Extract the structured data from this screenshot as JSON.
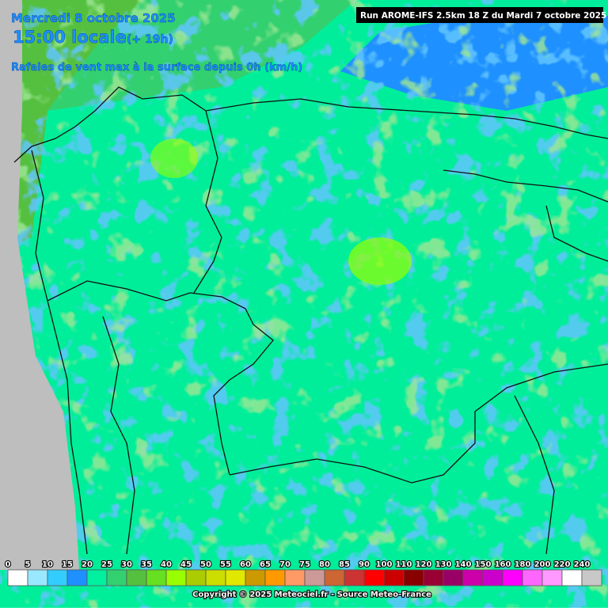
{
  "header": {
    "date": "Mercredi 8 octobre 2025",
    "time": "15:00 locale",
    "offset": "(+ 19h)",
    "parameter": "Rafales de vent max à la surface depuis 0h (km/h)",
    "run": "Run AROME-IFS 2.5km 18 Z du Mardi 7 octobre 2025"
  },
  "legend": {
    "items": [
      {
        "value": 0,
        "color": "#ffffff"
      },
      {
        "value": 5,
        "color": "#99e8ff"
      },
      {
        "value": 10,
        "color": "#33ccff"
      },
      {
        "value": 15,
        "color": "#1e90ff"
      },
      {
        "value": 20,
        "color": "#00f0a0"
      },
      {
        "value": 25,
        "color": "#33d070"
      },
      {
        "value": 30,
        "color": "#55c040"
      },
      {
        "value": 35,
        "color": "#66e020"
      },
      {
        "value": 40,
        "color": "#99ff00"
      },
      {
        "value": 45,
        "color": "#aacc00"
      },
      {
        "value": 50,
        "color": "#ccdd00"
      },
      {
        "value": 55,
        "color": "#e0e800"
      },
      {
        "value": 60,
        "color": "#cc9900"
      },
      {
        "value": 65,
        "color": "#ff9900"
      },
      {
        "value": 70,
        "color": "#ff9966"
      },
      {
        "value": 75,
        "color": "#cc9999"
      },
      {
        "value": 80,
        "color": "#cc6633"
      },
      {
        "value": 85,
        "color": "#cc3333"
      },
      {
        "value": 90,
        "color": "#ff0000"
      },
      {
        "value": 100,
        "color": "#cc0000"
      },
      {
        "value": 110,
        "color": "#880000"
      },
      {
        "value": 120,
        "color": "#990033"
      },
      {
        "value": 130,
        "color": "#990066"
      },
      {
        "value": 140,
        "color": "#cc00aa"
      },
      {
        "value": 150,
        "color": "#cc00cc"
      },
      {
        "value": 160,
        "color": "#ff00ff"
      },
      {
        "value": 180,
        "color": "#ff66ff"
      },
      {
        "value": 200,
        "color": "#ff99ff"
      },
      {
        "value": 220,
        "color": "#ffffff"
      },
      {
        "value": 240,
        "color": "#c8c8c8"
      }
    ]
  },
  "footer": {
    "copyright": "Copyright © 2025 Meteociel.fr - Source Meteo-France"
  }
}
